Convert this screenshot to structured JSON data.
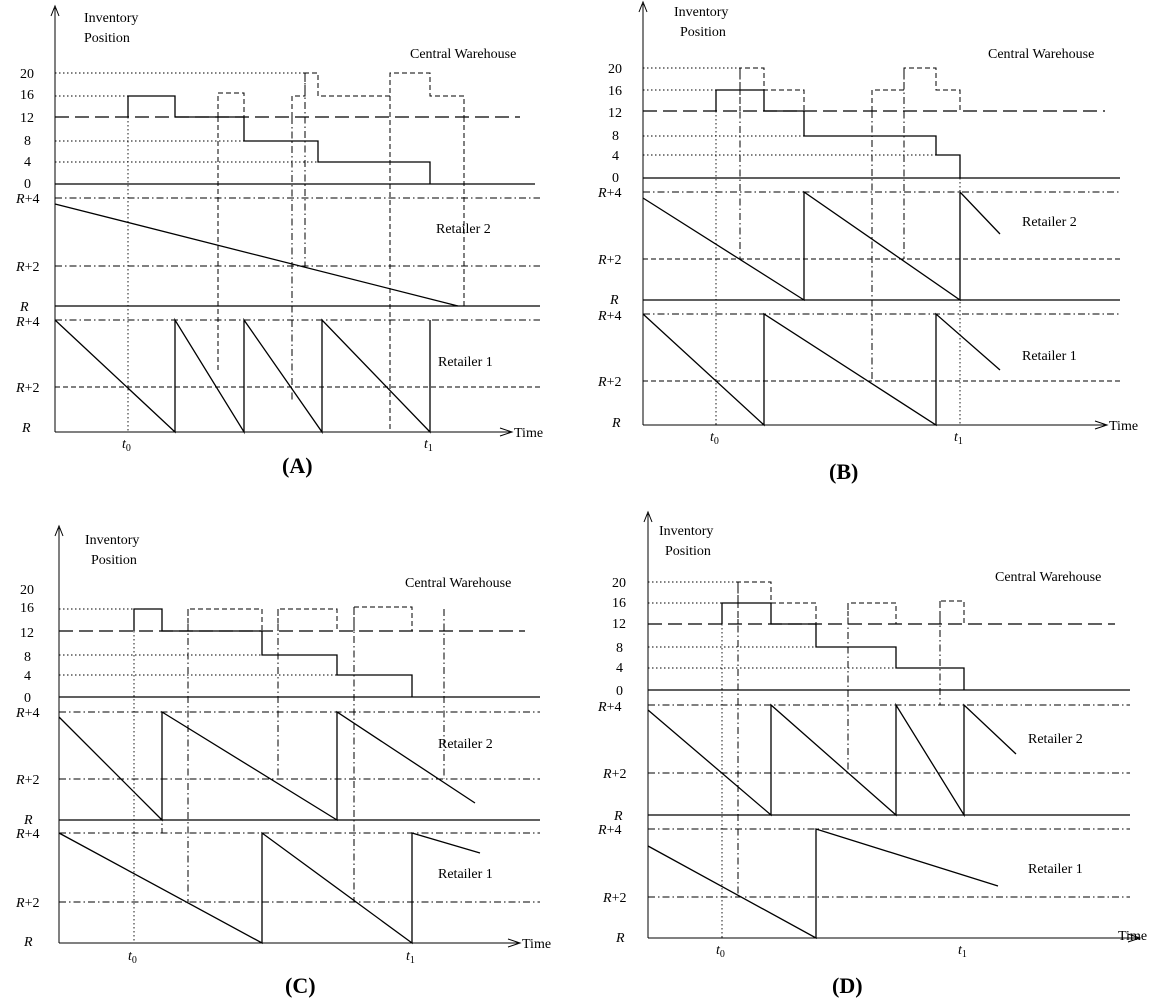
{
  "common": {
    "y_axis_title_line1": "Inventory",
    "y_axis_title_line2": "Position",
    "x_axis_label": "Time",
    "warehouse_label": "Central Warehouse",
    "retailer2_label": "Retailer 2",
    "retailer1_label": "Retailer 1",
    "warehouse_ticks": [
      "20",
      "16",
      "12",
      "8",
      "4",
      "0"
    ],
    "retailer_tick_top": "R+4",
    "retailer_tick_mid": "R+2",
    "retailer_tick_base": "R",
    "t0_label": "t",
    "t0_sub": "0",
    "t1_label": "t",
    "t1_sub": "1"
  },
  "panels": [
    {
      "id": "A",
      "caption": "(A)"
    },
    {
      "id": "B",
      "caption": "(B)"
    },
    {
      "id": "C",
      "caption": "(C)"
    },
    {
      "id": "D",
      "caption": "(D)"
    }
  ]
}
